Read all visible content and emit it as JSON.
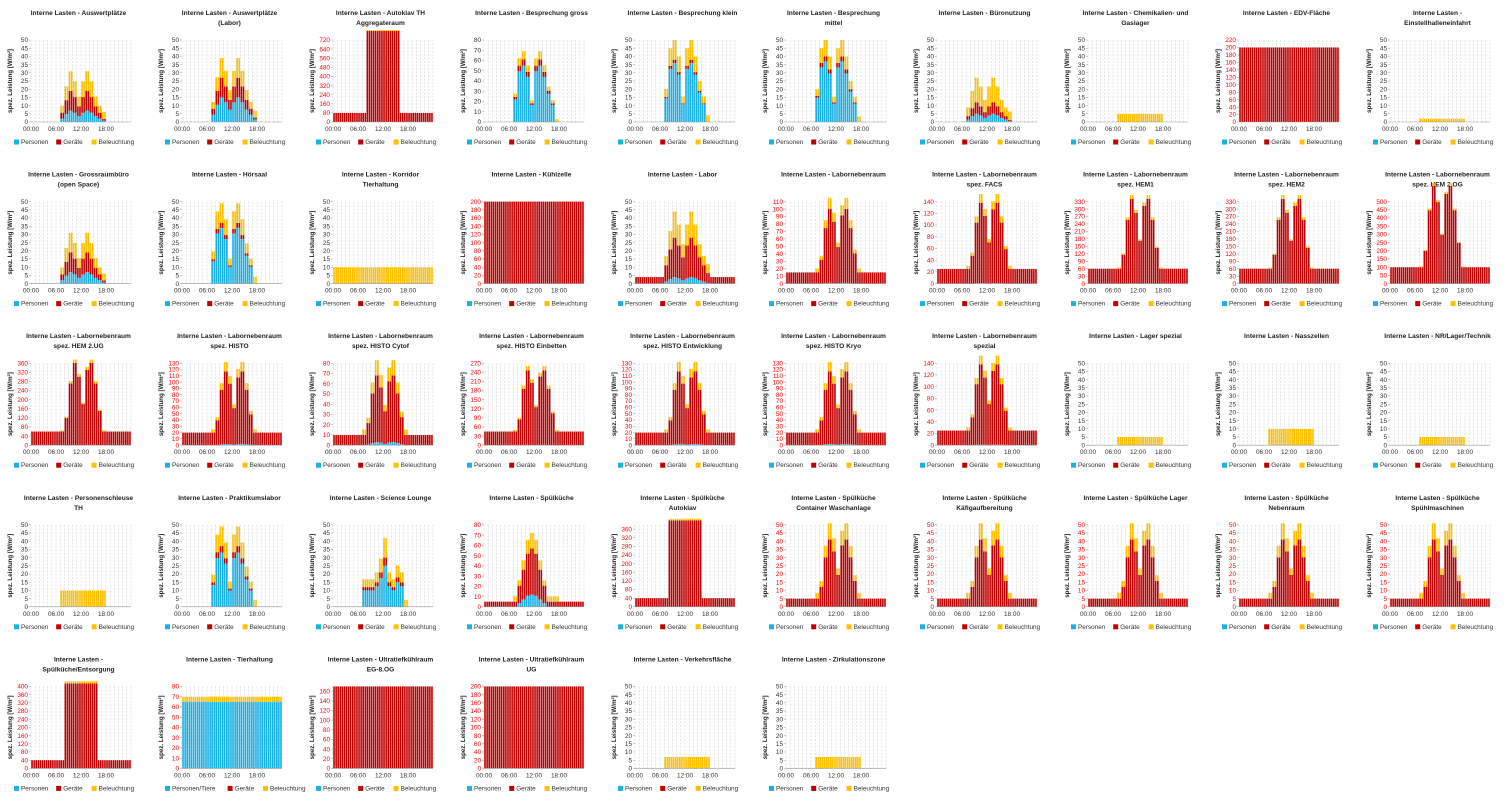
{
  "colors": {
    "personen": "#1ab1e6",
    "geraete": "#c00000",
    "beleuchtung": "#ffc000",
    "axis_red": "#ff0000"
  },
  "common": {
    "ylabel": "spez. Leistung [W/m²]",
    "x_ticks": [
      "00:00",
      "06:00",
      "12:00",
      "18:00"
    ],
    "legend": [
      "Personen",
      "Geräte",
      "Beleuchtung"
    ]
  },
  "chart_data": [
    {
      "type": "bar",
      "stacked": true,
      "title": "Interne Lasten - Auswertplätze",
      "ylim": [
        0,
        50
      ],
      "ystep": 5,
      "profile": "buro",
      "peaks": [
        7,
        12,
        12
      ]
    },
    {
      "type": "bar",
      "stacked": true,
      "title": "Interne Lasten - Auswertplätze (Labor)",
      "ylim": [
        0,
        50
      ],
      "ystep": 5,
      "profile": "buro",
      "peaks": [
        15,
        12,
        12
      ]
    },
    {
      "type": "bar",
      "stacked": true,
      "title": "Interne Lasten - Autoklav TH Aggregateraum",
      "ylim": [
        0,
        720
      ],
      "ystep": 80,
      "red_axis": true,
      "profile": "block",
      "base": [
        0,
        80,
        0
      ],
      "peaks": [
        0,
        720,
        8
      ]
    },
    {
      "type": "bar",
      "stacked": true,
      "title": "Interne Lasten - Besprechung gross",
      "ylim": [
        0,
        80
      ],
      "ystep": 10,
      "profile": "meeting",
      "peaks": [
        55,
        6,
        8
      ]
    },
    {
      "type": "bar",
      "stacked": true,
      "title": "Interne Lasten - Besprechung klein",
      "ylim": [
        0,
        50
      ],
      "ystep": 5,
      "profile": "meeting",
      "peaks": [
        36,
        2,
        12
      ]
    },
    {
      "type": "bar",
      "stacked": true,
      "title": "Interne Lasten - Besprechung mittel",
      "ylim": [
        0,
        50
      ],
      "ystep": 5,
      "profile": "meeting",
      "peaks": [
        37,
        3,
        10
      ]
    },
    {
      "type": "bar",
      "stacked": true,
      "title": "Interne Lasten - Büronutzung",
      "ylim": [
        0,
        50
      ],
      "ystep": 5,
      "profile": "buro",
      "peaks": [
        5,
        7,
        15
      ]
    },
    {
      "type": "bar",
      "stacked": true,
      "title": "Interne Lasten - Chemikalien- und Gaslager",
      "ylim": [
        0,
        50
      ],
      "ystep": 5,
      "profile": "light",
      "peaks": [
        0,
        0,
        5
      ]
    },
    {
      "type": "bar",
      "stacked": true,
      "title": "Interne Lasten - EDV-Fläche",
      "ylim": [
        0,
        220
      ],
      "ystep": 20,
      "red_axis": true,
      "profile": "const",
      "base": [
        0,
        200,
        0
      ],
      "peaks": [
        0,
        0,
        5
      ]
    },
    {
      "type": "bar",
      "stacked": true,
      "title": "Interne Lasten - Einstellhalleneinfahrt",
      "ylim": [
        0,
        50
      ],
      "ystep": 5,
      "profile": "light",
      "peaks": [
        0,
        0,
        2
      ]
    },
    {
      "type": "bar",
      "stacked": true,
      "title": "Interne Lasten - Grossraumbüro (open Space)",
      "ylim": [
        0,
        50
      ],
      "ystep": 5,
      "profile": "buro",
      "peaks": [
        7,
        12,
        12
      ]
    },
    {
      "type": "bar",
      "stacked": true,
      "title": "Interne Lasten - Hörsaal",
      "ylim": [
        0,
        50
      ],
      "ystep": 5,
      "profile": "meeting",
      "peaks": [
        34,
        3,
        12
      ]
    },
    {
      "type": "bar",
      "stacked": true,
      "title": "Interne Lasten - Korridor Tierhaltung",
      "ylim": [
        0,
        50
      ],
      "ystep": 5,
      "profile": "const",
      "base": [
        0,
        0,
        10
      ],
      "peaks": [
        0,
        0,
        0
      ]
    },
    {
      "type": "bar",
      "stacked": true,
      "title": "Interne Lasten - Kühlzelle",
      "ylim": [
        0,
        200
      ],
      "ystep": 20,
      "red_axis": true,
      "profile": "const",
      "base": [
        0,
        200,
        0
      ],
      "peaks": [
        0,
        0,
        0
      ]
    },
    {
      "type": "bar",
      "stacked": true,
      "title": "Interne Lasten - Labor",
      "ylim": [
        0,
        50
      ],
      "ystep": 5,
      "profile": "buro",
      "base": [
        0,
        4,
        0
      ],
      "peaks": [
        4,
        20,
        16
      ]
    },
    {
      "type": "bar",
      "stacked": true,
      "title": "Interne Lasten - Labornebenraum",
      "ylim": [
        0,
        110
      ],
      "ystep": 10,
      "red_axis": true,
      "profile": "lab",
      "base": [
        0,
        15,
        0
      ],
      "peaks": [
        1,
        84,
        15
      ]
    },
    {
      "type": "bar",
      "stacked": true,
      "title": "Interne Lasten - Labornebenraum spez. FACS",
      "ylim": [
        0,
        140
      ],
      "ystep": 20,
      "red_axis": true,
      "profile": "lab",
      "base": [
        0,
        25,
        0
      ],
      "peaks": [
        1,
        112,
        15
      ]
    },
    {
      "type": "bar",
      "stacked": true,
      "title": "Interne Lasten - Labornebenraum spez. HEM1",
      "ylim": [
        0,
        330
      ],
      "ystep": 30,
      "red_axis": true,
      "profile": "lab",
      "base": [
        0,
        60,
        0
      ],
      "peaks": [
        1,
        280,
        15
      ]
    },
    {
      "type": "bar",
      "stacked": true,
      "title": "Interne Lasten - Labornebenraum spez. HEM2",
      "ylim": [
        0,
        330
      ],
      "ystep": 30,
      "red_axis": true,
      "profile": "lab",
      "base": [
        0,
        60,
        0
      ],
      "peaks": [
        1,
        280,
        15
      ]
    },
    {
      "type": "bar",
      "stacked": true,
      "title": "Interne Lasten - Labornebenraum spez. HEM 2.OG",
      "ylim": [
        0,
        500
      ],
      "ystep": 50,
      "red_axis": true,
      "profile": "lab",
      "base": [
        0,
        100,
        0
      ],
      "peaks": [
        1,
        495,
        15
      ]
    },
    {
      "type": "bar",
      "stacked": true,
      "title": "Interne Lasten - Labornebenraum spez. HEM 2.UG",
      "ylim": [
        0,
        360
      ],
      "ystep": 40,
      "red_axis": true,
      "profile": "lab",
      "base": [
        0,
        60,
        0
      ],
      "peaks": [
        1,
        300,
        15
      ]
    },
    {
      "type": "bar",
      "stacked": true,
      "title": "Interne Lasten - Labornebenraum spez. HISTO",
      "ylim": [
        0,
        130
      ],
      "ystep": 10,
      "red_axis": true,
      "profile": "lab",
      "base": [
        0,
        20,
        0
      ],
      "peaks": [
        2,
        95,
        15
      ]
    },
    {
      "type": "bar",
      "stacked": true,
      "title": "Interne Lasten - Labornebenraum spez. HISTO Cytof",
      "ylim": [
        0,
        80
      ],
      "ystep": 10,
      "red_axis": true,
      "profile": "lab",
      "base": [
        0,
        10,
        0
      ],
      "peaks": [
        3,
        55,
        15
      ]
    },
    {
      "type": "bar",
      "stacked": true,
      "title": "Interne Lasten - Labornebenraum spez. HISTO Einbetten",
      "ylim": [
        0,
        270
      ],
      "ystep": 30,
      "red_axis": true,
      "profile": "lab",
      "base": [
        0,
        45,
        0
      ],
      "peaks": [
        1,
        200,
        15
      ]
    },
    {
      "type": "bar",
      "stacked": true,
      "title": "Interne Lasten - Labornebenraum spez. HISTO Entwicklung",
      "ylim": [
        0,
        130
      ],
      "ystep": 10,
      "red_axis": true,
      "profile": "lab",
      "base": [
        0,
        20,
        0
      ],
      "peaks": [
        2,
        95,
        15
      ]
    },
    {
      "type": "bar",
      "stacked": true,
      "title": "Interne Lasten - Labornebenraum spez. HISTO Kryo",
      "ylim": [
        0,
        130
      ],
      "ystep": 10,
      "red_axis": true,
      "profile": "lab",
      "base": [
        0,
        20,
        0
      ],
      "peaks": [
        2,
        95,
        15
      ]
    },
    {
      "type": "bar",
      "stacked": true,
      "title": "Interne Lasten - Labornebenraum spezial",
      "ylim": [
        0,
        140
      ],
      "ystep": 20,
      "red_axis": true,
      "profile": "lab",
      "base": [
        0,
        25,
        0
      ],
      "peaks": [
        1,
        112,
        15
      ]
    },
    {
      "type": "bar",
      "stacked": true,
      "title": "Interne Lasten - Lager spezial",
      "ylim": [
        0,
        50
      ],
      "ystep": 5,
      "profile": "light",
      "peaks": [
        0,
        0,
        5
      ]
    },
    {
      "type": "bar",
      "stacked": true,
      "title": "Interne Lasten - Nasszellen",
      "ylim": [
        0,
        50
      ],
      "ystep": 5,
      "profile": "light",
      "peaks": [
        0,
        0,
        10
      ]
    },
    {
      "type": "bar",
      "stacked": true,
      "title": "Interne Lasten - NR/Lager/Technik",
      "ylim": [
        0,
        50
      ],
      "ystep": 5,
      "profile": "light",
      "peaks": [
        0,
        0,
        5
      ]
    },
    {
      "type": "bar",
      "stacked": true,
      "title": "Interne Lasten - Personenschleuse TH",
      "ylim": [
        0,
        50
      ],
      "ystep": 5,
      "profile": "light",
      "peaks": [
        0,
        0,
        10
      ]
    },
    {
      "type": "bar",
      "stacked": true,
      "title": "Interne Lasten - Praktikumslabor",
      "ylim": [
        0,
        50
      ],
      "ystep": 5,
      "profile": "meeting",
      "peaks": [
        33,
        4,
        12
      ]
    },
    {
      "type": "bar",
      "stacked": true,
      "title": "Interne Lasten - Science Lounge",
      "ylim": [
        0,
        50
      ],
      "ystep": 5,
      "profile": "lounge",
      "peaks": [
        25,
        5,
        12
      ]
    },
    {
      "type": "bar",
      "stacked": true,
      "title": "Interne Lasten - Spülküche",
      "ylim": [
        0,
        80
      ],
      "ystep": 10,
      "red_axis": true,
      "profile": "kitchen",
      "base": [
        0,
        5,
        0
      ],
      "peaks": [
        12,
        40,
        15
      ]
    },
    {
      "type": "bar",
      "stacked": true,
      "title": "Interne Lasten - Spülküche Autoklav",
      "ylim": [
        0,
        380
      ],
      "ystep": 40,
      "red_axis": true,
      "profile": "block",
      "base": [
        0,
        40,
        0
      ],
      "peaks": [
        0,
        360,
        8
      ]
    },
    {
      "type": "bar",
      "stacked": true,
      "title": "Interne Lasten - Spülküche Container Waschanlage",
      "ylim": [
        0,
        50
      ],
      "ystep": 5,
      "red_axis": true,
      "profile": "lab",
      "base": [
        0,
        5,
        0
      ],
      "peaks": [
        0,
        36,
        10
      ]
    },
    {
      "type": "bar",
      "stacked": true,
      "title": "Interne Lasten - Spülküche Käfigaufbereitung",
      "ylim": [
        0,
        50
      ],
      "ystep": 5,
      "red_axis": true,
      "profile": "lab",
      "base": [
        0,
        5,
        0
      ],
      "peaks": [
        0,
        36,
        10
      ]
    },
    {
      "type": "bar",
      "stacked": true,
      "title": "Interne Lasten - Spülküche Lager",
      "ylim": [
        0,
        50
      ],
      "ystep": 5,
      "red_axis": true,
      "profile": "lab",
      "base": [
        0,
        5,
        0
      ],
      "peaks": [
        0,
        36,
        10
      ]
    },
    {
      "type": "bar",
      "stacked": true,
      "title": "Interne Lasten - Spülküche Nebenraum",
      "ylim": [
        0,
        50
      ],
      "ystep": 5,
      "red_axis": true,
      "profile": "lab",
      "base": [
        0,
        5,
        0
      ],
      "peaks": [
        0,
        36,
        10
      ]
    },
    {
      "type": "bar",
      "stacked": true,
      "title": "Interne Lasten - Spülküche Spühlmaschinen",
      "ylim": [
        0,
        50
      ],
      "ystep": 5,
      "red_axis": true,
      "profile": "lab",
      "base": [
        0,
        5,
        0
      ],
      "peaks": [
        0,
        36,
        10
      ]
    },
    {
      "type": "bar",
      "stacked": true,
      "title": "Interne Lasten - Spülküche/Entsorgung",
      "ylim": [
        0,
        400
      ],
      "ystep": 40,
      "red_axis": true,
      "profile": "block",
      "base": [
        0,
        40,
        0
      ],
      "peaks": [
        0,
        375,
        10
      ]
    },
    {
      "type": "bar",
      "stacked": true,
      "title": "Interne Lasten - Tierhaltung",
      "ylim": [
        0,
        80
      ],
      "ystep": 10,
      "red_axis": true,
      "profile": "const",
      "base": [
        65,
        0,
        5
      ],
      "peaks": [
        0,
        0,
        0
      ],
      "legend": [
        "Personen/Tiere",
        "Geräte",
        "Beleuchtung"
      ]
    },
    {
      "type": "bar",
      "stacked": true,
      "title": "Interne Lasten - Ultratiefkühlraum EG-8.OG",
      "ylim": [
        0,
        170
      ],
      "ystep": 20,
      "red_axis": true,
      "profile": "const",
      "base": [
        0,
        170,
        0
      ],
      "peaks": [
        0,
        0,
        0
      ]
    },
    {
      "type": "bar",
      "stacked": true,
      "title": "Interne Lasten - Ultratiefkühlraum UG",
      "ylim": [
        0,
        200
      ],
      "ystep": 20,
      "red_axis": true,
      "profile": "const",
      "base": [
        0,
        200,
        0
      ],
      "peaks": [
        0,
        0,
        0
      ]
    },
    {
      "type": "bar",
      "stacked": true,
      "title": "Interne Lasten - Verkehrsfläche",
      "ylim": [
        0,
        50
      ],
      "ystep": 5,
      "profile": "light",
      "peaks": [
        0,
        0,
        7
      ]
    },
    {
      "type": "bar",
      "stacked": true,
      "title": "Interne Lasten - Zirkulationszone",
      "ylim": [
        0,
        50
      ],
      "ystep": 5,
      "profile": "light",
      "peaks": [
        0,
        0,
        7
      ]
    }
  ]
}
